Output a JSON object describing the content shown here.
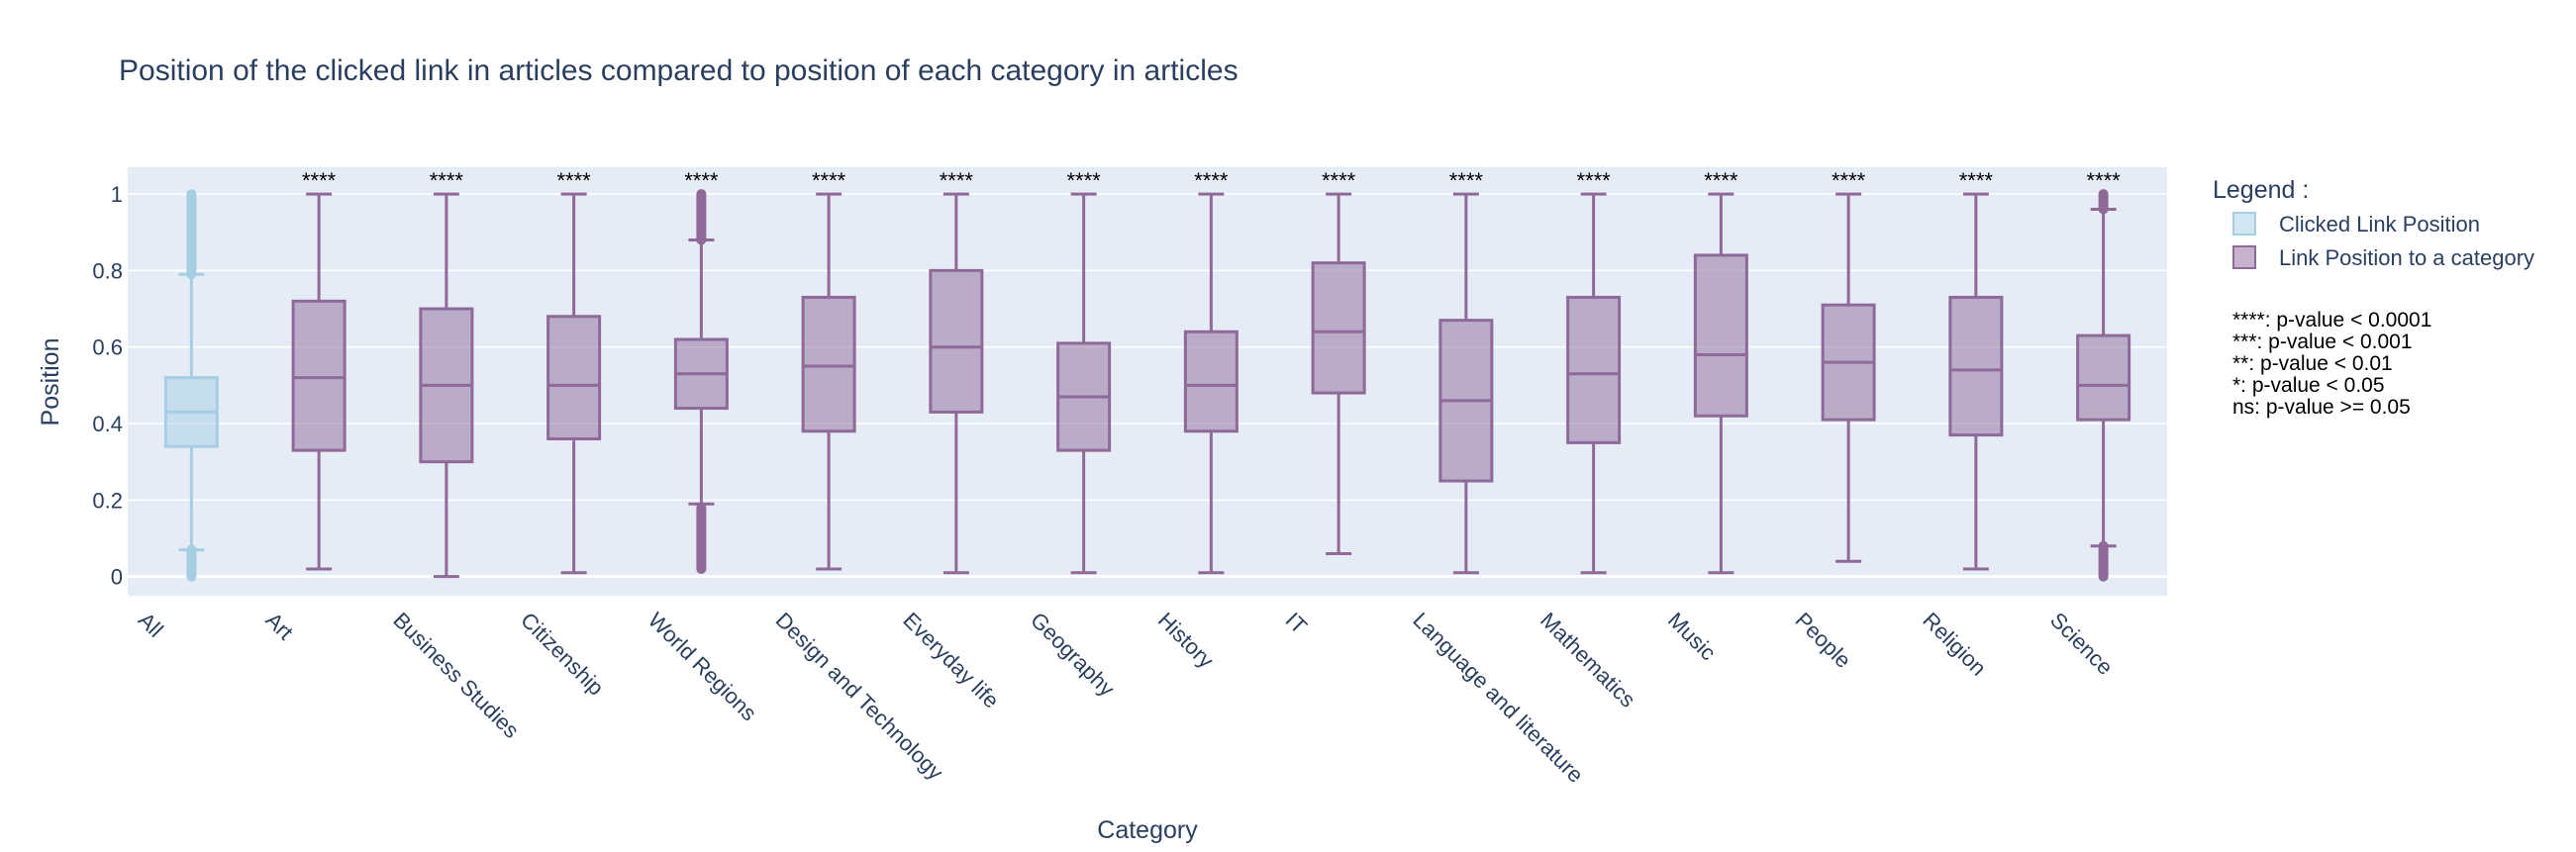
{
  "chart_data": {
    "type": "box",
    "title": "Position of the clicked link in articles compared to position of each category in articles",
    "xlabel": "Category",
    "ylabel": "Position",
    "ylim": [
      -0.05,
      1.07
    ],
    "yticks": [
      0,
      0.2,
      0.4,
      0.6,
      0.8,
      1
    ],
    "ytick_labels": [
      "0",
      "0.2",
      "0.4",
      "0.6",
      "0.8",
      "1"
    ],
    "grid": true,
    "legend_placement": "right",
    "categories": [
      "All",
      "Art",
      "Business Studies",
      "Citizenship",
      "World Regions",
      "Design and Technology",
      "Everyday life",
      "Geography",
      "History",
      "IT",
      "Language and literature",
      "Mathematics",
      "Music",
      "People",
      "Religion",
      "Science"
    ],
    "legend": {
      "title": "Legend :",
      "entries": [
        "Clicked Link Position",
        "Link Position to a category"
      ]
    },
    "series": [
      {
        "name": "Clicked Link Position",
        "color": "#a6cee3",
        "boxes": [
          {
            "category": "All",
            "min": 0.07,
            "q1": 0.34,
            "median": 0.43,
            "q3": 0.52,
            "max": 0.79,
            "outliers_low": [
              0.0,
              0.07
            ],
            "outliers_high": [
              0.79,
              1.0
            ]
          }
        ]
      },
      {
        "name": "Link Position to a category",
        "color": "#8f6a99",
        "boxes": [
          {
            "category": "Art",
            "min": 0.02,
            "q1": 0.33,
            "median": 0.52,
            "q3": 0.72,
            "max": 1.0
          },
          {
            "category": "Business Studies",
            "min": 0.0,
            "q1": 0.3,
            "median": 0.5,
            "q3": 0.7,
            "max": 1.0
          },
          {
            "category": "Citizenship",
            "min": 0.01,
            "q1": 0.36,
            "median": 0.5,
            "q3": 0.68,
            "max": 1.0
          },
          {
            "category": "World Regions",
            "min": 0.19,
            "q1": 0.44,
            "median": 0.53,
            "q3": 0.62,
            "max": 0.88,
            "outliers_low": [
              0.02,
              0.18
            ],
            "outliers_high": [
              0.88,
              1.0
            ]
          },
          {
            "category": "Design and Technology",
            "min": 0.02,
            "q1": 0.38,
            "median": 0.55,
            "q3": 0.73,
            "max": 1.0
          },
          {
            "category": "Everyday life",
            "min": 0.01,
            "q1": 0.43,
            "median": 0.6,
            "q3": 0.8,
            "max": 1.0
          },
          {
            "category": "Geography",
            "min": 0.01,
            "q1": 0.33,
            "median": 0.47,
            "q3": 0.61,
            "max": 1.0
          },
          {
            "category": "History",
            "min": 0.01,
            "q1": 0.38,
            "median": 0.5,
            "q3": 0.64,
            "max": 1.0
          },
          {
            "category": "IT",
            "min": 0.06,
            "q1": 0.48,
            "median": 0.64,
            "q3": 0.82,
            "max": 1.0
          },
          {
            "category": "Language and literature",
            "min": 0.01,
            "q1": 0.25,
            "median": 0.46,
            "q3": 0.67,
            "max": 1.0
          },
          {
            "category": "Mathematics",
            "min": 0.01,
            "q1": 0.35,
            "median": 0.53,
            "q3": 0.73,
            "max": 1.0
          },
          {
            "category": "Music",
            "min": 0.01,
            "q1": 0.42,
            "median": 0.58,
            "q3": 0.84,
            "max": 1.0
          },
          {
            "category": "People",
            "min": 0.04,
            "q1": 0.41,
            "median": 0.56,
            "q3": 0.71,
            "max": 1.0
          },
          {
            "category": "Religion",
            "min": 0.02,
            "q1": 0.37,
            "median": 0.54,
            "q3": 0.73,
            "max": 1.0
          },
          {
            "category": "Science",
            "min": 0.08,
            "q1": 0.41,
            "median": 0.5,
            "q3": 0.63,
            "max": 0.96,
            "outliers_low": [
              0.0,
              0.08
            ],
            "outliers_high": [
              0.96,
              1.0
            ]
          }
        ]
      }
    ],
    "annotations": {
      "significance": [
        "****",
        "****",
        "****",
        "****",
        "****",
        "****",
        "****",
        "****",
        "****",
        "****",
        "****",
        "****",
        "****",
        "****",
        "****"
      ],
      "notes": [
        "****: p-value < 0.0001",
        "***: p-value < 0.001",
        "**: p-value < 0.01",
        "*: p-value < 0.05",
        "ns: p-value >= 0.05"
      ]
    }
  }
}
